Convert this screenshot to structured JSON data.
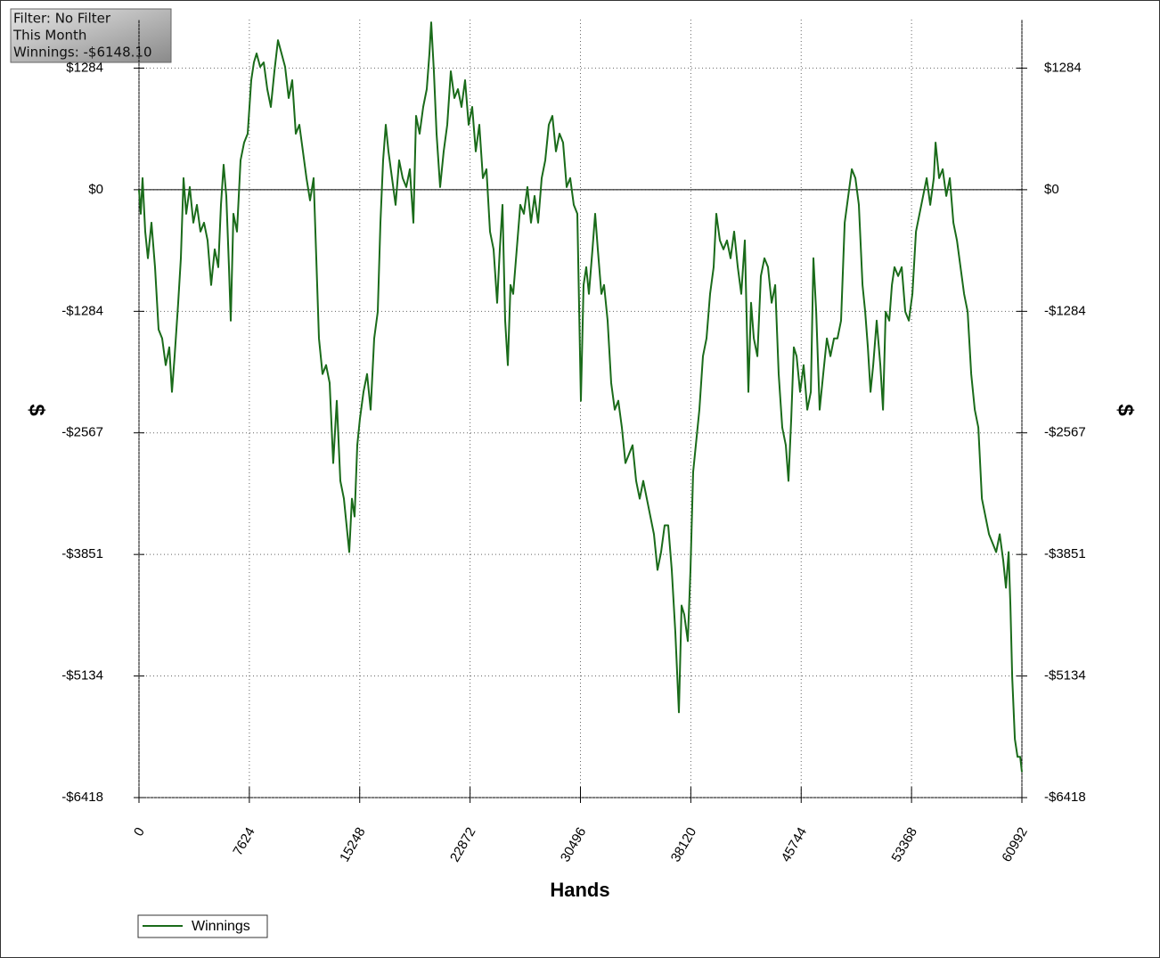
{
  "chart_data": {
    "type": "line",
    "info": [
      "Filter: No Filter",
      "This Month",
      "Winnings: -$6148.10"
    ],
    "xlabel": "Hands",
    "ylabel": "$",
    "xlim": [
      0,
      60992
    ],
    "ylim": [
      -6418,
      1796
    ],
    "xticks": [
      0,
      7624,
      15248,
      22872,
      30496,
      38120,
      45744,
      53368,
      60992
    ],
    "yticks": [
      {
        "value": 1284,
        "label": "$1284"
      },
      {
        "value": 0,
        "label": "$0"
      },
      {
        "value": -1284,
        "label": "-$1284"
      },
      {
        "value": -2567,
        "label": "-$2567"
      },
      {
        "value": -3851,
        "label": "-$3851"
      },
      {
        "value": -5134,
        "label": "-$5134"
      },
      {
        "value": -6418,
        "label": "-$6418"
      }
    ],
    "grid": true,
    "legend": "bottom-left",
    "x": [
      0,
      123,
      246,
      431,
      616,
      862,
      1108,
      1354,
      1600,
      1847,
      2093,
      2277,
      2462,
      2708,
      2893,
      3078,
      3262,
      3508,
      3755,
      4001,
      4247,
      4493,
      4739,
      4986,
      5232,
      5478,
      5663,
      5847,
      6032,
      6217,
      6340,
      6524,
      6771,
      7017,
      7263,
      7509,
      7755,
      7940,
      8125,
      8371,
      8617,
      8863,
      9109,
      9356,
      9602,
      9848,
      10094,
      10340,
      10587,
      10833,
      11079,
      11325,
      11571,
      11818,
      12064,
      12248,
      12433,
      12679,
      12926,
      13172,
      13418,
      13664,
      13910,
      14157,
      14403,
      14526,
      14710,
      14895,
      15080,
      15264,
      15511,
      15757,
      16003,
      16249,
      16495,
      16680,
      16865,
      17049,
      17234,
      17480,
      17726,
      17973,
      18219,
      18465,
      18711,
      18957,
      19142,
      19388,
      19634,
      19881,
      20065,
      20188,
      20373,
      20558,
      20804,
      21050,
      21296,
      21543,
      21789,
      22035,
      22281,
      22527,
      22774,
      23020,
      23266,
      23512,
      23758,
      24005,
      24251,
      24497,
      24743,
      24928,
      25112,
      25297,
      25482,
      25666,
      25851,
      26097,
      26343,
      26590,
      26836,
      27082,
      27328,
      27574,
      27821,
      28067,
      28313,
      28559,
      28805,
      29052,
      29298,
      29544,
      29790,
      30036,
      30283,
      30529,
      30713,
      30898,
      31083,
      31329,
      31514,
      31698,
      31944,
      32129,
      32375,
      32621,
      32868,
      33114,
      33360,
      33606,
      33852,
      34099,
      34345,
      34591,
      34837,
      35083,
      35330,
      35576,
      35822,
      36068,
      36314,
      36561,
      36807,
      37053,
      37299,
      37484,
      37668,
      37914,
      38099,
      38284,
      38469,
      38715,
      38961,
      39207,
      39453,
      39700,
      39884,
      40131,
      40377,
      40623,
      40869,
      41115,
      41362,
      41608,
      41854,
      42100,
      42285,
      42470,
      42716,
      42962,
      43208,
      43454,
      43701,
      43947,
      44193,
      44439,
      44685,
      44870,
      45055,
      45239,
      45424,
      45670,
      45916,
      46163,
      46409,
      46593,
      46778,
      47024,
      47270,
      47517,
      47763,
      48009,
      48255,
      48501,
      48748,
      48994,
      49240,
      49486,
      49732,
      49979,
      50163,
      50348,
      50533,
      50717,
      50963,
      51210,
      51394,
      51579,
      51825,
      52010,
      52194,
      52441,
      52687,
      52933,
      53179,
      53425,
      53672,
      53918,
      54164,
      54410,
      54656,
      54903,
      55026,
      55272,
      55519,
      55765,
      56011,
      56257,
      56503,
      56750,
      56996,
      57242,
      57488,
      57734,
      57981,
      58227,
      58473,
      58719,
      58965,
      59211,
      59458,
      59704,
      59888,
      60073,
      60196,
      60319,
      60504,
      60689,
      60873,
      60992
    ],
    "series": [
      {
        "name": "Winnings",
        "color": "#1a6b1a",
        "values": [
          0,
          -254,
          122,
          -442,
          -724,
          -348,
          -818,
          -1476,
          -1570,
          -1852,
          -1664,
          -2134,
          -1758,
          -1194,
          -724,
          122,
          -254,
          28,
          -348,
          -160,
          -442,
          -348,
          -536,
          -1006,
          -630,
          -818,
          -160,
          263,
          -66,
          -818,
          -1382,
          -254,
          -442,
          310,
          498,
          592,
          1156,
          1344,
          1438,
          1297,
          1344,
          1062,
          874,
          1250,
          1579,
          1438,
          1297,
          968,
          1156,
          592,
          686,
          404,
          122,
          -113,
          122,
          -724,
          -1570,
          -1946,
          -1852,
          -2040,
          -2886,
          -2228,
          -3074,
          -3262,
          -3638,
          -3826,
          -3262,
          -3450,
          -2698,
          -2416,
          -2134,
          -1946,
          -2322,
          -1570,
          -1288,
          -348,
          310,
          686,
          404,
          122,
          -160,
          310,
          122,
          28,
          216,
          -348,
          780,
          592,
          874,
          1062,
          1438,
          1767,
          1250,
          592,
          28,
          404,
          686,
          1250,
          968,
          1062,
          874,
          1156,
          686,
          874,
          404,
          686,
          122,
          216,
          -442,
          -630,
          -1194,
          -630,
          -160,
          -1382,
          -1852,
          -1006,
          -1100,
          -630,
          -160,
          -254,
          28,
          -348,
          -66,
          -348,
          122,
          310,
          686,
          780,
          404,
          592,
          498,
          28,
          122,
          -160,
          -254,
          -2228,
          -1006,
          -818,
          -1100,
          -630,
          -254,
          -630,
          -1100,
          -1006,
          -1382,
          -2040,
          -2322,
          -2228,
          -2510,
          -2886,
          -2792,
          -2698,
          -3074,
          -3262,
          -3074,
          -3262,
          -3450,
          -3638,
          -4014,
          -3826,
          -3544,
          -3544,
          -4014,
          -4672,
          -5518,
          -4390,
          -4484,
          -4766,
          -4014,
          -2980,
          -2698,
          -2322,
          -1758,
          -1570,
          -1100,
          -818,
          -254,
          -536,
          -630,
          -536,
          -724,
          -442,
          -818,
          -1100,
          -536,
          -2134,
          -1194,
          -1570,
          -1758,
          -912,
          -724,
          -818,
          -1194,
          -1006,
          -1946,
          -2510,
          -2698,
          -3074,
          -2416,
          -1664,
          -1758,
          -2134,
          -1852,
          -2322,
          -2134,
          -724,
          -1288,
          -2322,
          -1946,
          -1570,
          -1758,
          -1570,
          -1570,
          -1382,
          -348,
          -66,
          216,
          122,
          -160,
          -1006,
          -1288,
          -1664,
          -2134,
          -1852,
          -1382,
          -1852,
          -2322,
          -1288,
          -1382,
          -1006,
          -818,
          -912,
          -818,
          -1288,
          -1382,
          -1100,
          -442,
          -254,
          -66,
          122,
          -160,
          122,
          498,
          122,
          216,
          -66,
          122,
          -348,
          -536,
          -818,
          -1100,
          -1288,
          -1946,
          -2322,
          -2510,
          -3262,
          -3450,
          -3638,
          -3732,
          -3826,
          -3638,
          -3920,
          -4202,
          -3826,
          -4390,
          -5142,
          -5800,
          -5988,
          -5988,
          -6148
        ]
      }
    ]
  }
}
